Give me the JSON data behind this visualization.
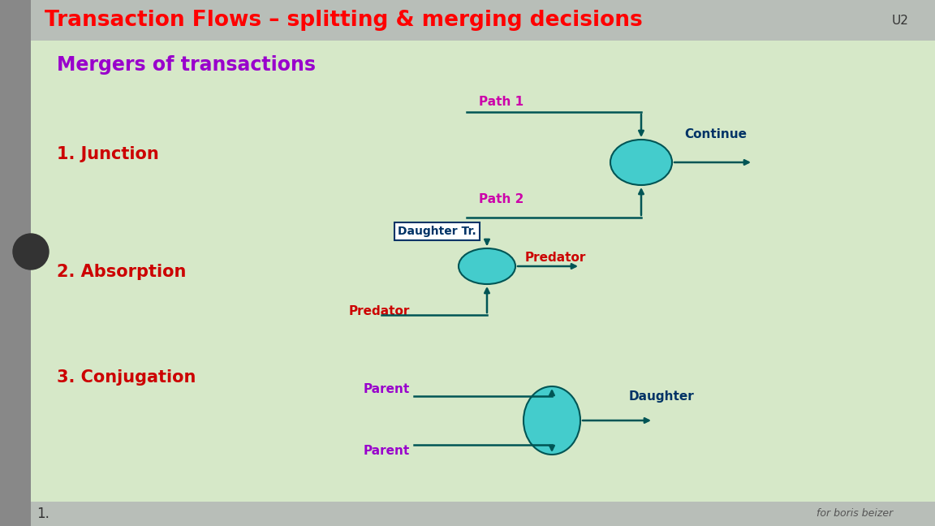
{
  "title": "Transaction Flows – splitting & merging decisions",
  "title_color": "#FF0000",
  "u2_label": "U2",
  "slide_bg_color": "#D6E8C8",
  "header_bg": "#B8BEB8",
  "subtitle": "Mergers of transactions",
  "subtitle_color": "#9900CC",
  "section1": "1. Junction",
  "section2": "2. Absorption",
  "section3": "3. Conjugation",
  "section_color": "#CC0000",
  "path_label_color": "#CC00AA",
  "predator_label_color": "#CC0000",
  "parent_label_color": "#9900CC",
  "dark_label_color": "#003366",
  "arrow_color": "#005555",
  "ellipse_color": "#44CCCC",
  "ellipse_edge": "#005555",
  "footer_left": "1.",
  "footer_right": "for boris beizer"
}
